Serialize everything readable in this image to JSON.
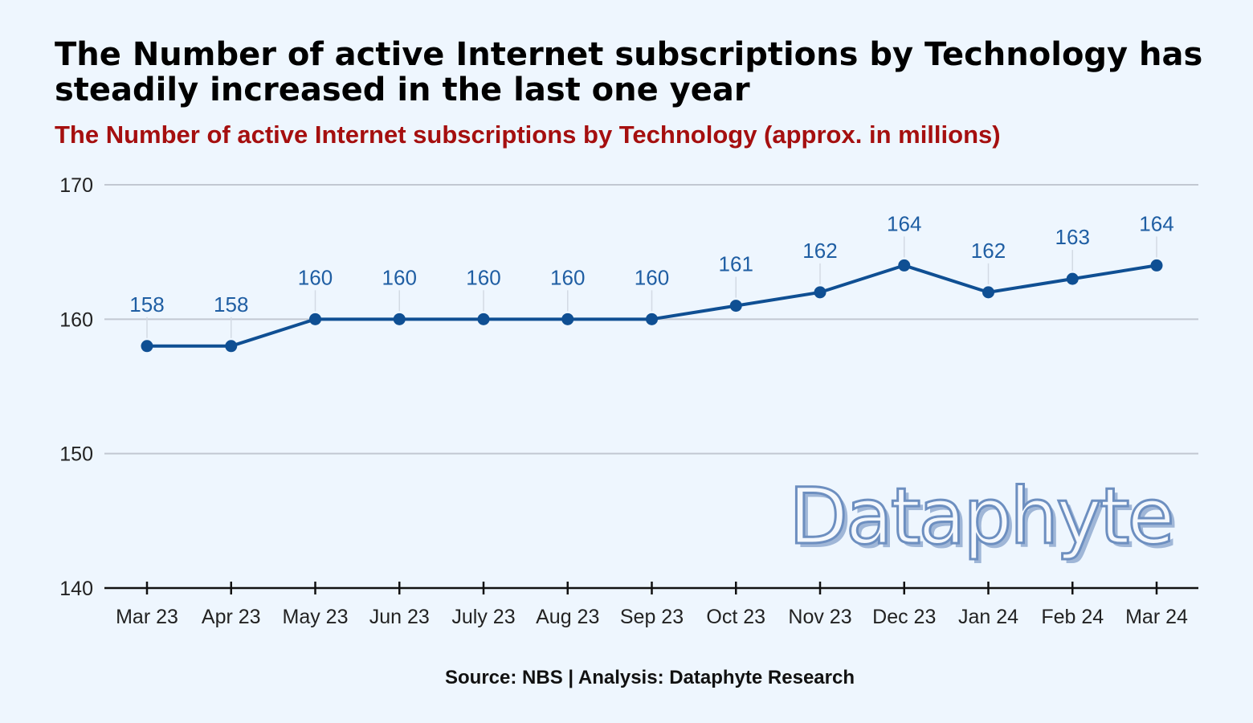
{
  "header": {
    "title": "The Number of active Internet subscriptions by Technology has steadily increased in the last one year",
    "subtitle": "The Number of active Internet subscriptions by Technology (approx. in millions)"
  },
  "watermark": "Dataphyte",
  "footer": {
    "source": "Source: NBS | Analysis: Dataphyte Research"
  },
  "colors": {
    "background": "#eef6fe",
    "series": "#0f4f93",
    "data_label": "#1f5ea3",
    "subtitle": "#a50f0f",
    "gridline": "#c2c8d2"
  },
  "chart_data": {
    "type": "line",
    "title": "The Number of active Internet subscriptions by Technology has steadily increased in the last one year",
    "subtitle": "The Number of active Internet subscriptions by Technology (approx. in millions)",
    "categories": [
      "Mar 23",
      "Apr 23",
      "May 23",
      "Jun 23",
      "July 23",
      "Aug 23",
      "Sep 23",
      "Oct 23",
      "Nov 23",
      "Dec 23",
      "Jan 24",
      "Feb 24",
      "Mar 24"
    ],
    "values": [
      158,
      158,
      160,
      160,
      160,
      160,
      160,
      161,
      162,
      164,
      162,
      163,
      164
    ],
    "data_labels": [
      "158",
      "158",
      "160",
      "160",
      "160",
      "160",
      "160",
      "161",
      "162",
      "164",
      "162",
      "163",
      "164"
    ],
    "yticks": [
      140,
      150,
      160,
      170
    ],
    "ytick_labels": [
      "140",
      "150",
      "160",
      "170"
    ],
    "ylim": [
      140,
      170
    ],
    "xlabel": "",
    "ylabel": "",
    "grid": true,
    "legend": "none"
  }
}
